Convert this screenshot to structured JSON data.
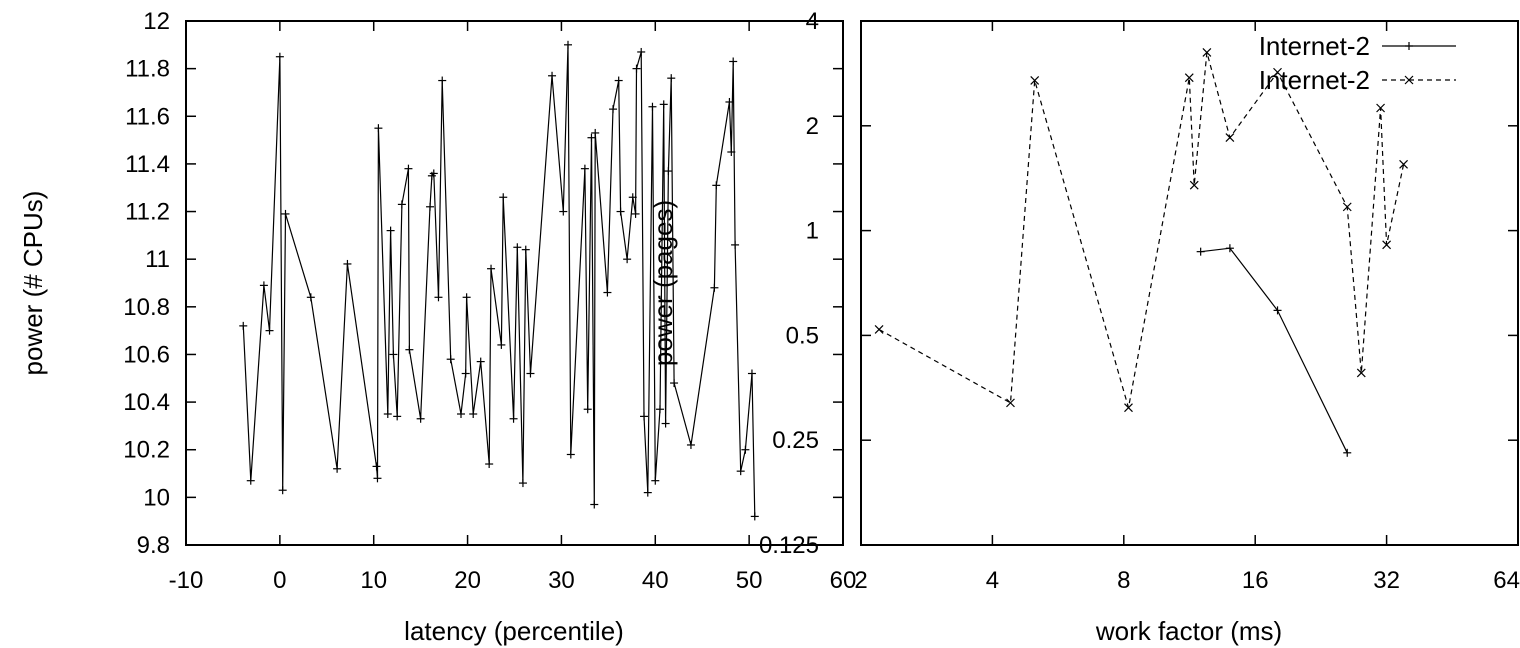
{
  "chart_data": [
    {
      "type": "line",
      "xlabel": "latency (percentile)",
      "ylabel": "power (# CPUs)",
      "xlim": [
        -10,
        60
      ],
      "ylim": [
        9.8,
        12
      ],
      "x_scale": "linear",
      "y_scale": "linear",
      "x_ticks": [
        -10,
        0,
        10,
        20,
        30,
        40,
        50,
        60
      ],
      "x_tick_labels": [
        "-10",
        "0",
        "10",
        "20",
        "30",
        "40",
        "50",
        "60"
      ],
      "y_ticks": [
        9.8,
        10,
        10.2,
        10.4,
        10.6,
        10.8,
        11,
        11.2,
        11.4,
        11.6,
        11.8,
        12
      ],
      "y_tick_labels": [
        "9.8",
        "10",
        "10.2",
        "10.4",
        "10.6",
        "10.8",
        "11",
        "11.2",
        "11.4",
        "11.6",
        "11.8",
        "12"
      ],
      "grid": false,
      "legend": "none",
      "series": [
        {
          "marker": "plus",
          "line": "solid",
          "x": [
            -3.9,
            -3.1,
            -1.7,
            -1.1,
            0.0,
            0.3,
            0.6,
            3.3,
            6.1,
            7.2,
            10.3,
            10.4,
            10.5,
            11.5,
            11.8,
            12.1,
            12.5,
            13.0,
            13.7,
            13.8,
            15.0,
            16.0,
            16.2,
            16.4,
            16.9,
            17.3,
            18.2,
            19.3,
            19.8,
            19.9,
            20.6,
            21.4,
            22.3,
            22.5,
            23.6,
            23.8,
            24.9,
            25.3,
            25.9,
            26.2,
            26.7,
            29.0,
            30.2,
            30.7,
            31.0,
            32.5,
            32.8,
            33.2,
            33.5,
            33.6,
            34.9,
            35.5,
            36.1,
            36.3,
            37.0,
            37.6,
            37.9,
            38.0,
            38.5,
            38.8,
            39.2,
            39.7,
            40.0,
            40.5,
            40.9,
            41.1,
            41.4,
            41.7,
            42.0,
            43.8,
            46.3,
            46.5,
            47.9,
            48.1,
            48.3,
            48.5,
            49.1,
            49.6,
            50.3,
            50.6
          ],
          "y": [
            10.72,
            10.07,
            10.89,
            10.7,
            11.85,
            10.03,
            11.19,
            10.84,
            10.12,
            10.98,
            10.13,
            10.08,
            11.55,
            10.35,
            11.12,
            10.6,
            10.34,
            11.23,
            11.38,
            10.62,
            10.33,
            11.22,
            11.35,
            11.36,
            10.84,
            11.75,
            10.58,
            10.35,
            10.52,
            10.84,
            10.35,
            10.57,
            10.14,
            10.96,
            10.64,
            11.26,
            10.33,
            11.05,
            10.06,
            11.04,
            10.52,
            11.77,
            11.2,
            11.9,
            10.18,
            11.38,
            10.37,
            11.51,
            9.97,
            11.53,
            10.86,
            11.63,
            11.75,
            11.2,
            11.0,
            11.26,
            11.19,
            11.8,
            11.87,
            10.34,
            10.02,
            11.64,
            10.07,
            10.37,
            11.65,
            10.31,
            11.37,
            11.76,
            10.48,
            10.22,
            10.88,
            11.31,
            11.66,
            11.45,
            11.83,
            11.06,
            10.11,
            10.2,
            10.52,
            9.92
          ]
        }
      ]
    },
    {
      "type": "line",
      "xlabel": "work factor (ms)",
      "ylabel": "power (pages)",
      "x_scale": "log2",
      "y_scale": "log2",
      "xlim": [
        2,
        64
      ],
      "ylim": [
        0.125,
        4
      ],
      "x_ticks": [
        2,
        4,
        8,
        16,
        32,
        64
      ],
      "x_tick_labels": [
        "2",
        "4",
        "8",
        "16",
        "32",
        "64"
      ],
      "y_ticks": [
        0.125,
        0.25,
        0.5,
        1,
        2,
        4
      ],
      "y_tick_labels": [
        "0.125",
        "0.25",
        "0.5",
        "1",
        "2",
        "4"
      ],
      "grid": false,
      "legend": "top-right",
      "series": [
        {
          "name": "Internet-2",
          "marker": "plus",
          "line": "solid",
          "x": [
            12,
            14,
            18,
            26
          ],
          "y": [
            0.87,
            0.89,
            0.59,
            0.23
          ]
        },
        {
          "name": "Internet-2",
          "marker": "cross",
          "line": "dashed",
          "x": [
            2.2,
            4.4,
            5.0,
            8.2,
            11.3,
            11.6,
            12.4,
            14.0,
            18.0,
            26.0,
            28.0,
            31.0,
            32.0,
            35.0
          ],
          "y": [
            0.52,
            0.32,
            2.7,
            0.31,
            2.75,
            1.35,
            3.25,
            1.85,
            2.85,
            1.17,
            0.39,
            2.25,
            0.91,
            1.55
          ]
        }
      ]
    }
  ]
}
